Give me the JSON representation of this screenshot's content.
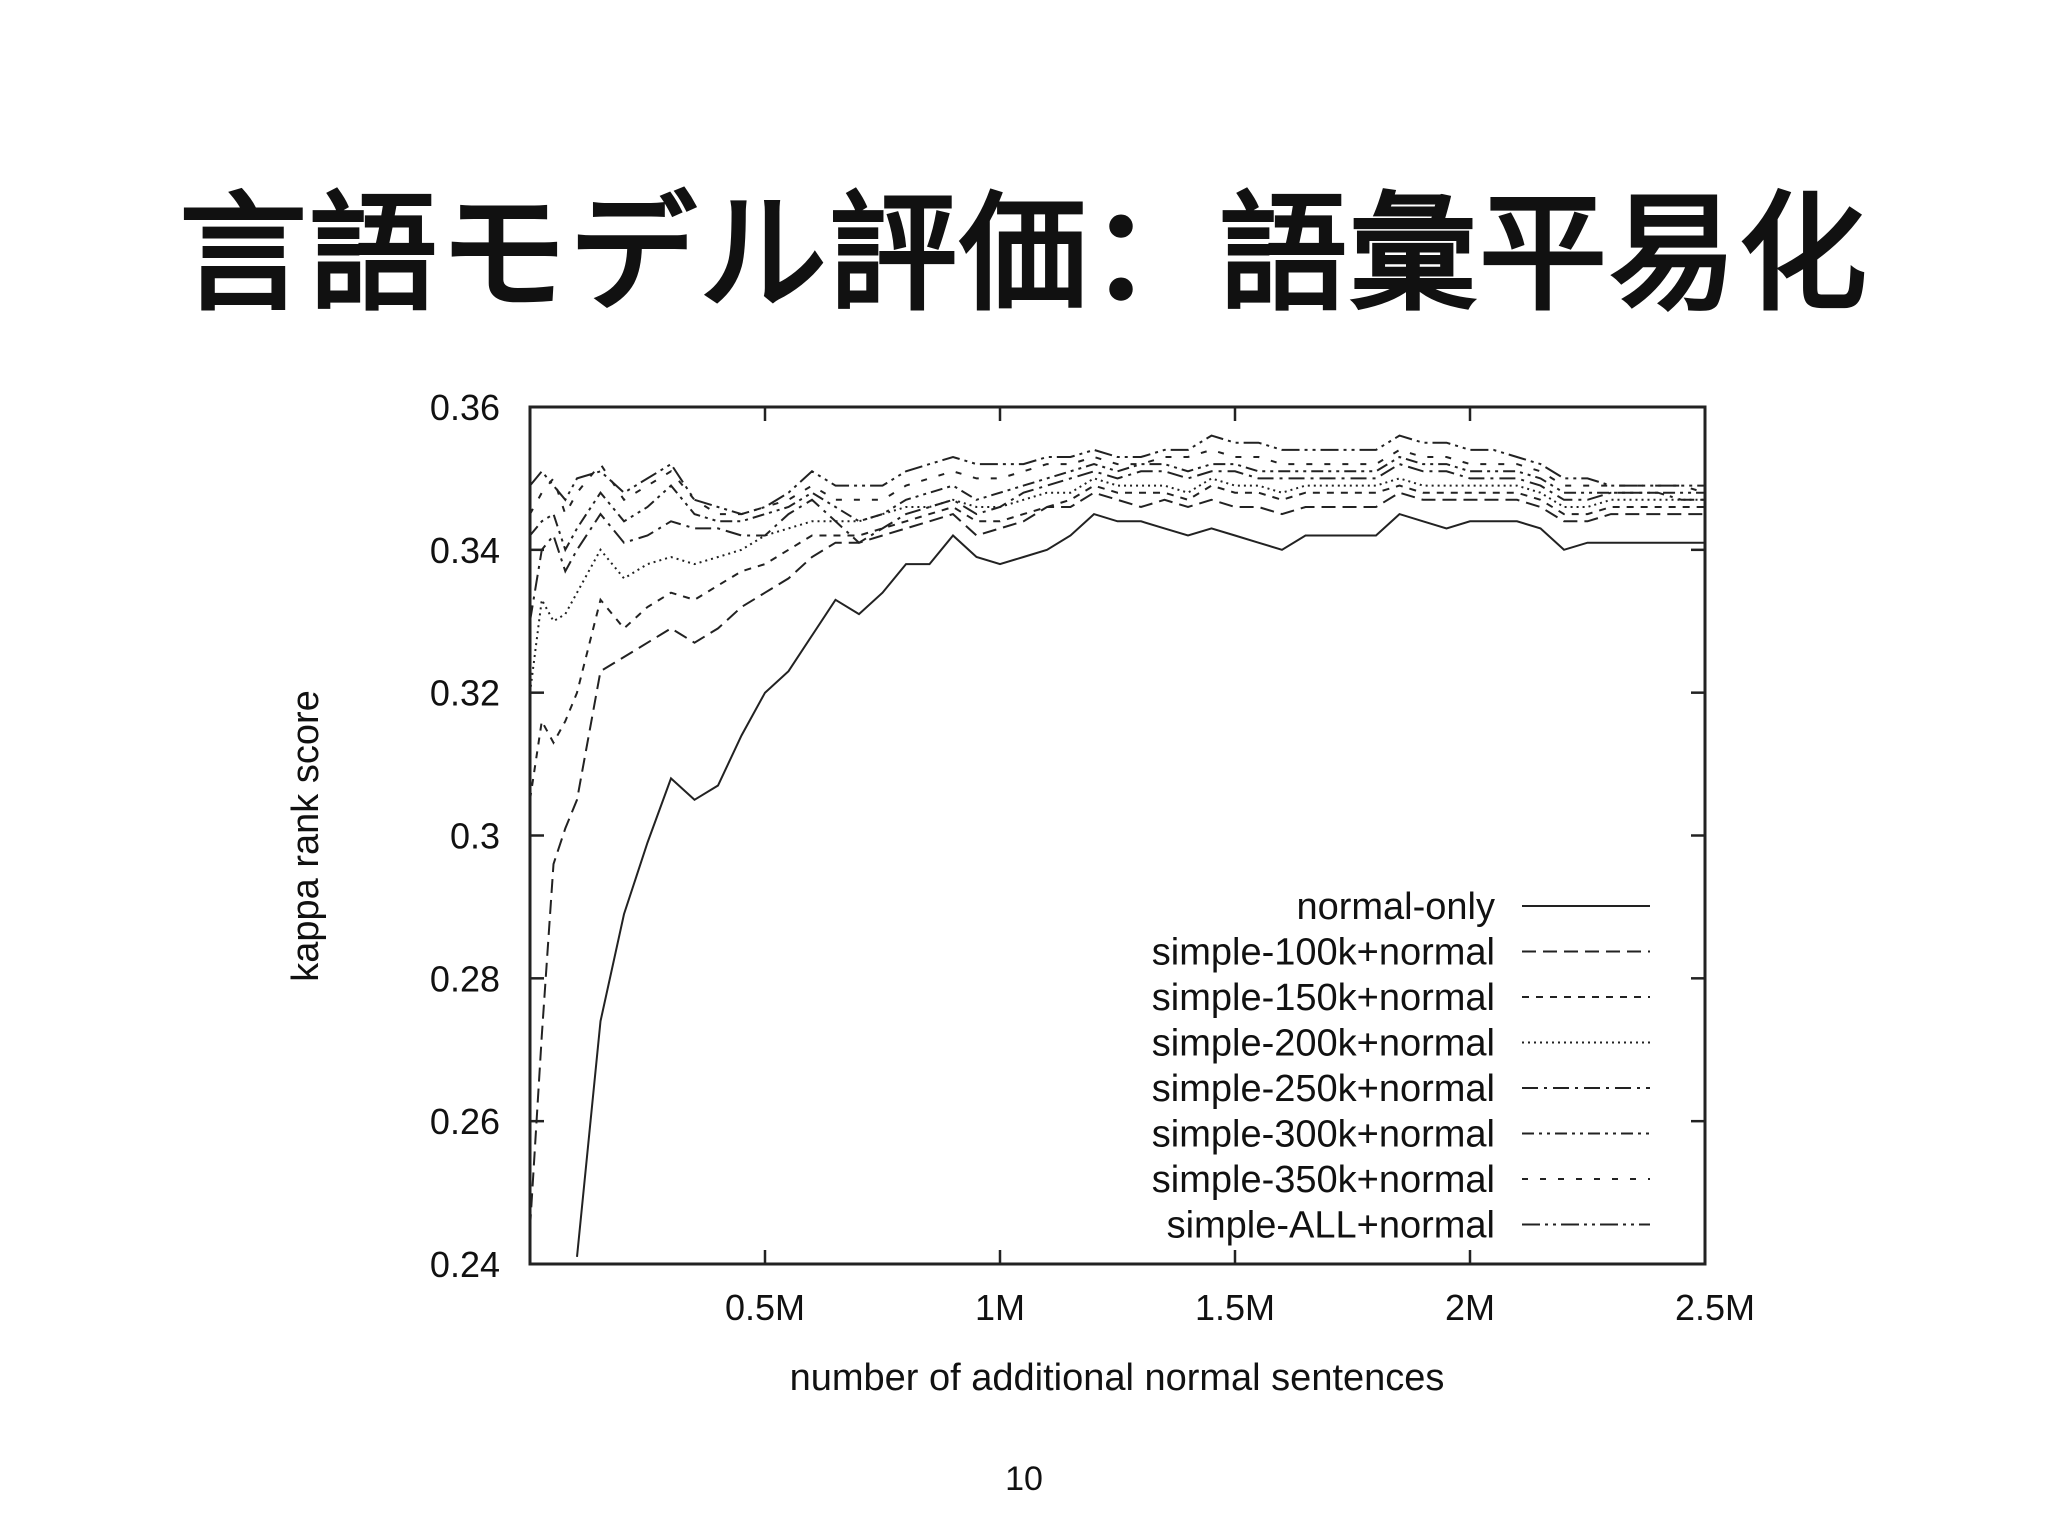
{
  "slide": {
    "title": "言語モデル評価：語彙平易化",
    "page_number": "10"
  },
  "chart_data": {
    "type": "line",
    "title": "",
    "xlabel": "number of additional normal sentences",
    "ylabel": "kappa rank score",
    "xlim": [
      0,
      2.5
    ],
    "ylim": [
      0.24,
      0.36
    ],
    "x_ticks": [
      0.5,
      1,
      1.5,
      2,
      2.5
    ],
    "x_tick_labels": [
      "0.5M",
      "1M",
      "1.5M",
      "2M",
      "2.5M"
    ],
    "y_ticks": [
      0.24,
      0.26,
      0.28,
      0.3,
      0.32,
      0.34,
      0.36
    ],
    "y_tick_labels": [
      "0.24",
      "0.26",
      "0.28",
      "0.3",
      "0.32",
      "0.34",
      "0.36"
    ],
    "grid": false,
    "legend_position": "bottom-right",
    "series": [
      {
        "name": "normal-only",
        "dash": "solid",
        "x": [
          0.1,
          0.15,
          0.2,
          0.25,
          0.3,
          0.35,
          0.4,
          0.45,
          0.5,
          0.55,
          0.6,
          0.65,
          0.7,
          0.75,
          0.8,
          0.85,
          0.9,
          0.95,
          1.0,
          1.05,
          1.1,
          1.15,
          1.2,
          1.25,
          1.3,
          1.35,
          1.4,
          1.45,
          1.5,
          1.55,
          1.6,
          1.65,
          1.7,
          1.75,
          1.8,
          1.85,
          1.9,
          1.95,
          2.0,
          2.05,
          2.1,
          2.15,
          2.2,
          2.25,
          2.3,
          2.35,
          2.4,
          2.45,
          2.5
        ],
        "values": [
          0.241,
          0.274,
          0.289,
          0.299,
          0.308,
          0.305,
          0.307,
          0.314,
          0.32,
          0.323,
          0.328,
          0.333,
          0.331,
          0.334,
          0.338,
          0.338,
          0.342,
          0.339,
          0.338,
          0.339,
          0.34,
          0.342,
          0.345,
          0.344,
          0.344,
          0.343,
          0.342,
          0.343,
          0.342,
          0.341,
          0.34,
          0.342,
          0.342,
          0.342,
          0.342,
          0.345,
          0.344,
          0.343,
          0.344,
          0.344,
          0.344,
          0.343,
          0.34,
          0.341,
          0.341,
          0.341,
          0.341,
          0.341,
          0.341
        ]
      },
      {
        "name": "simple-100k+normal",
        "dash": "dashed",
        "x": [
          0.0,
          0.025,
          0.05,
          0.075,
          0.1,
          0.15,
          0.2,
          0.25,
          0.3,
          0.35,
          0.4,
          0.45,
          0.5,
          0.55,
          0.6,
          0.65,
          0.7,
          0.75,
          0.8,
          0.85,
          0.9,
          0.95,
          1.0,
          1.05,
          1.1,
          1.15,
          1.2,
          1.25,
          1.3,
          1.35,
          1.4,
          1.45,
          1.5,
          1.55,
          1.6,
          1.65,
          1.7,
          1.75,
          1.8,
          1.85,
          1.9,
          1.95,
          2.0,
          2.05,
          2.1,
          2.15,
          2.2,
          2.25,
          2.3,
          2.35,
          2.4,
          2.45,
          2.5
        ],
        "values": [
          0.245,
          0.272,
          0.296,
          0.301,
          0.305,
          0.323,
          0.325,
          0.327,
          0.329,
          0.327,
          0.329,
          0.332,
          0.334,
          0.336,
          0.339,
          0.341,
          0.341,
          0.342,
          0.343,
          0.344,
          0.345,
          0.342,
          0.343,
          0.344,
          0.346,
          0.346,
          0.348,
          0.347,
          0.346,
          0.347,
          0.346,
          0.347,
          0.346,
          0.346,
          0.345,
          0.346,
          0.346,
          0.346,
          0.346,
          0.348,
          0.347,
          0.347,
          0.347,
          0.347,
          0.347,
          0.346,
          0.344,
          0.344,
          0.345,
          0.345,
          0.345,
          0.345,
          0.345
        ]
      },
      {
        "name": "simple-150k+normal",
        "dash": "dashed-fine",
        "x": [
          0.0,
          0.025,
          0.05,
          0.075,
          0.1,
          0.15,
          0.2,
          0.25,
          0.3,
          0.35,
          0.4,
          0.45,
          0.5,
          0.55,
          0.6,
          0.65,
          0.7,
          0.75,
          0.8,
          0.85,
          0.9,
          0.95,
          1.0,
          1.05,
          1.1,
          1.15,
          1.2,
          1.25,
          1.3,
          1.35,
          1.4,
          1.45,
          1.5,
          1.55,
          1.6,
          1.65,
          1.7,
          1.75,
          1.8,
          1.85,
          1.9,
          1.95,
          2.0,
          2.05,
          2.1,
          2.15,
          2.2,
          2.25,
          2.3,
          2.35,
          2.4,
          2.45,
          2.5
        ],
        "values": [
          0.305,
          0.316,
          0.313,
          0.316,
          0.32,
          0.333,
          0.329,
          0.332,
          0.334,
          0.333,
          0.335,
          0.337,
          0.338,
          0.34,
          0.342,
          0.342,
          0.342,
          0.343,
          0.344,
          0.345,
          0.346,
          0.344,
          0.344,
          0.345,
          0.346,
          0.347,
          0.349,
          0.348,
          0.348,
          0.348,
          0.347,
          0.349,
          0.348,
          0.348,
          0.347,
          0.348,
          0.348,
          0.348,
          0.348,
          0.349,
          0.348,
          0.348,
          0.348,
          0.348,
          0.348,
          0.347,
          0.345,
          0.345,
          0.346,
          0.346,
          0.346,
          0.346,
          0.346
        ]
      },
      {
        "name": "simple-200k+normal",
        "dash": "dotted",
        "x": [
          0.0,
          0.025,
          0.05,
          0.075,
          0.1,
          0.15,
          0.2,
          0.25,
          0.3,
          0.35,
          0.4,
          0.45,
          0.5,
          0.55,
          0.6,
          0.65,
          0.7,
          0.75,
          0.8,
          0.85,
          0.9,
          0.95,
          1.0,
          1.05,
          1.1,
          1.15,
          1.2,
          1.25,
          1.3,
          1.35,
          1.4,
          1.45,
          1.5,
          1.55,
          1.6,
          1.65,
          1.7,
          1.75,
          1.8,
          1.85,
          1.9,
          1.95,
          2.0,
          2.05,
          2.1,
          2.15,
          2.2,
          2.25,
          2.3,
          2.35,
          2.4,
          2.45,
          2.5
        ],
        "values": [
          0.32,
          0.333,
          0.33,
          0.331,
          0.334,
          0.34,
          0.336,
          0.338,
          0.339,
          0.338,
          0.339,
          0.34,
          0.342,
          0.343,
          0.344,
          0.344,
          0.344,
          0.345,
          0.346,
          0.346,
          0.347,
          0.346,
          0.346,
          0.347,
          0.348,
          0.348,
          0.35,
          0.349,
          0.349,
          0.349,
          0.348,
          0.35,
          0.349,
          0.349,
          0.348,
          0.349,
          0.349,
          0.349,
          0.349,
          0.35,
          0.349,
          0.349,
          0.349,
          0.349,
          0.349,
          0.348,
          0.346,
          0.346,
          0.347,
          0.347,
          0.347,
          0.347,
          0.347
        ]
      },
      {
        "name": "simple-250k+normal",
        "dash": "dash-dot",
        "x": [
          0.0,
          0.025,
          0.05,
          0.075,
          0.1,
          0.15,
          0.2,
          0.25,
          0.3,
          0.35,
          0.4,
          0.45,
          0.5,
          0.55,
          0.6,
          0.65,
          0.7,
          0.75,
          0.8,
          0.85,
          0.9,
          0.95,
          1.0,
          1.05,
          1.1,
          1.15,
          1.2,
          1.25,
          1.3,
          1.35,
          1.4,
          1.45,
          1.5,
          1.55,
          1.6,
          1.65,
          1.7,
          1.75,
          1.8,
          1.85,
          1.9,
          1.95,
          2.0,
          2.05,
          2.1,
          2.15,
          2.2,
          2.25,
          2.3,
          2.35,
          2.4,
          2.45,
          2.5
        ],
        "values": [
          0.33,
          0.34,
          0.342,
          0.337,
          0.34,
          0.345,
          0.341,
          0.342,
          0.344,
          0.343,
          0.343,
          0.342,
          0.342,
          0.345,
          0.347,
          0.344,
          0.341,
          0.343,
          0.345,
          0.346,
          0.347,
          0.345,
          0.346,
          0.348,
          0.349,
          0.35,
          0.351,
          0.35,
          0.351,
          0.351,
          0.35,
          0.351,
          0.351,
          0.35,
          0.35,
          0.35,
          0.35,
          0.35,
          0.35,
          0.352,
          0.351,
          0.351,
          0.35,
          0.35,
          0.35,
          0.349,
          0.347,
          0.347,
          0.348,
          0.348,
          0.348,
          0.347,
          0.347
        ]
      },
      {
        "name": "simple-300k+normal",
        "dash": "dash-dot-dot",
        "x": [
          0.0,
          0.025,
          0.05,
          0.075,
          0.1,
          0.15,
          0.2,
          0.25,
          0.3,
          0.35,
          0.4,
          0.45,
          0.5,
          0.55,
          0.6,
          0.65,
          0.7,
          0.75,
          0.8,
          0.85,
          0.9,
          0.95,
          1.0,
          1.05,
          1.1,
          1.15,
          1.2,
          1.25,
          1.3,
          1.35,
          1.4,
          1.45,
          1.5,
          1.55,
          1.6,
          1.65,
          1.7,
          1.75,
          1.8,
          1.85,
          1.9,
          1.95,
          2.0,
          2.05,
          2.1,
          2.15,
          2.2,
          2.25,
          2.3,
          2.35,
          2.4,
          2.45,
          2.5
        ],
        "values": [
          0.342,
          0.344,
          0.345,
          0.34,
          0.343,
          0.348,
          0.344,
          0.346,
          0.349,
          0.345,
          0.344,
          0.344,
          0.345,
          0.346,
          0.348,
          0.346,
          0.344,
          0.345,
          0.347,
          0.348,
          0.349,
          0.347,
          0.348,
          0.349,
          0.35,
          0.351,
          0.352,
          0.351,
          0.352,
          0.352,
          0.351,
          0.352,
          0.352,
          0.351,
          0.351,
          0.351,
          0.351,
          0.351,
          0.351,
          0.353,
          0.352,
          0.352,
          0.351,
          0.351,
          0.351,
          0.35,
          0.348,
          0.348,
          0.348,
          0.348,
          0.348,
          0.348,
          0.348
        ]
      },
      {
        "name": "simple-350k+normal",
        "dash": "dash-sparse",
        "x": [
          0.0,
          0.025,
          0.05,
          0.075,
          0.1,
          0.15,
          0.2,
          0.25,
          0.3,
          0.35,
          0.4,
          0.45,
          0.5,
          0.55,
          0.6,
          0.65,
          0.7,
          0.75,
          0.8,
          0.85,
          0.9,
          0.95,
          1.0,
          1.05,
          1.1,
          1.15,
          1.2,
          1.25,
          1.3,
          1.35,
          1.4,
          1.45,
          1.5,
          1.55,
          1.6,
          1.65,
          1.7,
          1.75,
          1.8,
          1.85,
          1.9,
          1.95,
          2.0,
          2.05,
          2.1,
          2.15,
          2.2,
          2.25,
          2.3,
          2.35,
          2.4,
          2.45,
          2.5
        ],
        "values": [
          0.345,
          0.348,
          0.35,
          0.345,
          0.348,
          0.352,
          0.347,
          0.349,
          0.351,
          0.347,
          0.345,
          0.345,
          0.346,
          0.347,
          0.349,
          0.347,
          0.347,
          0.347,
          0.349,
          0.35,
          0.351,
          0.35,
          0.35,
          0.351,
          0.352,
          0.352,
          0.353,
          0.352,
          0.352,
          0.353,
          0.353,
          0.354,
          0.353,
          0.353,
          0.352,
          0.352,
          0.352,
          0.352,
          0.352,
          0.354,
          0.353,
          0.353,
          0.352,
          0.352,
          0.352,
          0.351,
          0.349,
          0.349,
          0.349,
          0.349,
          0.349,
          0.349,
          0.348
        ]
      },
      {
        "name": "simple-ALL+normal",
        "dash": "long-dash-dot-dot",
        "x": [
          0.0,
          0.025,
          0.05,
          0.075,
          0.1,
          0.15,
          0.2,
          0.25,
          0.3,
          0.35,
          0.4,
          0.45,
          0.5,
          0.55,
          0.6,
          0.65,
          0.7,
          0.75,
          0.8,
          0.85,
          0.9,
          0.95,
          1.0,
          1.05,
          1.1,
          1.15,
          1.2,
          1.25,
          1.3,
          1.35,
          1.4,
          1.45,
          1.5,
          1.55,
          1.6,
          1.65,
          1.7,
          1.75,
          1.8,
          1.85,
          1.9,
          1.95,
          2.0,
          2.05,
          2.1,
          2.15,
          2.2,
          2.25,
          2.3,
          2.35,
          2.4,
          2.45,
          2.5
        ],
        "values": [
          0.349,
          0.351,
          0.349,
          0.347,
          0.35,
          0.351,
          0.348,
          0.35,
          0.352,
          0.347,
          0.346,
          0.345,
          0.346,
          0.348,
          0.351,
          0.349,
          0.349,
          0.349,
          0.351,
          0.352,
          0.353,
          0.352,
          0.352,
          0.352,
          0.353,
          0.353,
          0.354,
          0.353,
          0.353,
          0.354,
          0.354,
          0.356,
          0.355,
          0.355,
          0.354,
          0.354,
          0.354,
          0.354,
          0.354,
          0.356,
          0.355,
          0.355,
          0.354,
          0.354,
          0.353,
          0.352,
          0.35,
          0.35,
          0.349,
          0.349,
          0.349,
          0.349,
          0.349
        ]
      }
    ]
  }
}
